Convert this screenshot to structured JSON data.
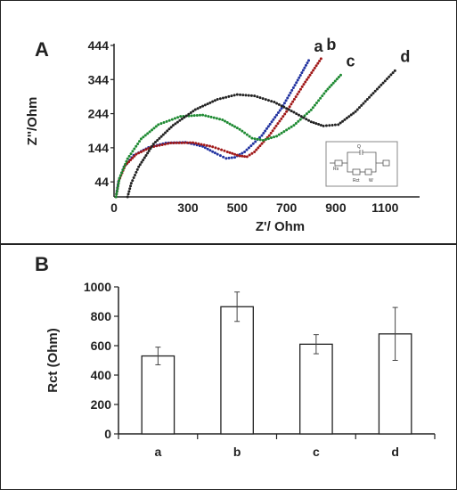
{
  "panel_a": {
    "letter": "A",
    "chart_data": {
      "type": "scatter",
      "xlabel": "Z'/ Ohm",
      "ylabel": "Z''/Ohm",
      "xlim": [
        0,
        1240
      ],
      "ylim": [
        0,
        444
      ],
      "x_ticks": [
        0,
        300,
        500,
        700,
        900,
        1100
      ],
      "y_ticks": [
        44,
        144,
        244,
        344,
        444
      ],
      "x_tick_labels": [
        "0",
        "300",
        "500",
        "700",
        "900",
        "1100"
      ],
      "y_tick_labels": [
        "44",
        "144",
        "244",
        "344",
        "444"
      ],
      "series": [
        {
          "name": "a",
          "color": "#2233a0",
          "points": [
            [
              8,
              0
            ],
            [
              18,
              45
            ],
            [
              40,
              88
            ],
            [
              80,
              122
            ],
            [
              140,
              145
            ],
            [
              210,
              158
            ],
            [
              290,
              160
            ],
            [
              360,
              148
            ],
            [
              420,
              125
            ],
            [
              455,
              113
            ],
            [
              490,
              116
            ],
            [
              530,
              132
            ],
            [
              600,
              180
            ],
            [
              680,
              260
            ],
            [
              740,
              335
            ],
            [
              790,
              400
            ]
          ]
        },
        {
          "name": "b",
          "color": "#a01818",
          "points": [
            [
              8,
              0
            ],
            [
              20,
              48
            ],
            [
              45,
              92
            ],
            [
              90,
              125
            ],
            [
              150,
              146
            ],
            [
              230,
              158
            ],
            [
              320,
              159
            ],
            [
              400,
              147
            ],
            [
              460,
              132
            ],
            [
              510,
              120
            ],
            [
              540,
              118
            ],
            [
              570,
              132
            ],
            [
              630,
              180
            ],
            [
              700,
              250
            ],
            [
              770,
              330
            ],
            [
              840,
              405
            ]
          ]
        },
        {
          "name": "c",
          "color": "#1e8a32",
          "points": [
            [
              8,
              0
            ],
            [
              22,
              55
            ],
            [
              55,
              112
            ],
            [
              110,
              170
            ],
            [
              180,
              212
            ],
            [
              270,
              236
            ],
            [
              360,
              240
            ],
            [
              440,
              226
            ],
            [
              510,
              198
            ],
            [
              560,
              172
            ],
            [
              605,
              166
            ],
            [
              660,
              178
            ],
            [
              730,
              210
            ],
            [
              800,
              255
            ],
            [
              860,
              310
            ],
            [
              920,
              357
            ]
          ]
        },
        {
          "name": "d",
          "color": "#222222",
          "points": [
            [
              55,
              0
            ],
            [
              70,
              40
            ],
            [
              100,
              88
            ],
            [
              160,
              155
            ],
            [
              240,
              210
            ],
            [
              330,
              256
            ],
            [
              420,
              286
            ],
            [
              500,
              300
            ],
            [
              570,
              296
            ],
            [
              650,
              278
            ],
            [
              730,
              248
            ],
            [
              800,
              220
            ],
            [
              850,
              208
            ],
            [
              910,
              212
            ],
            [
              980,
              250
            ],
            [
              1060,
              310
            ],
            [
              1140,
              370
            ]
          ]
        }
      ]
    },
    "inset": {
      "labels": [
        "Rs",
        "Q",
        "Rct",
        "W"
      ]
    }
  },
  "panel_b": {
    "letter": "B",
    "chart_data": {
      "type": "bar",
      "categories": [
        "a",
        "b",
        "c",
        "d"
      ],
      "values": [
        530,
        865,
        610,
        680
      ],
      "errors": [
        60,
        100,
        65,
        180
      ],
      "ylabel": "Rct (Ohm)",
      "ylim": [
        0,
        1000
      ],
      "y_ticks": [
        0,
        200,
        400,
        600,
        800,
        1000
      ]
    }
  }
}
